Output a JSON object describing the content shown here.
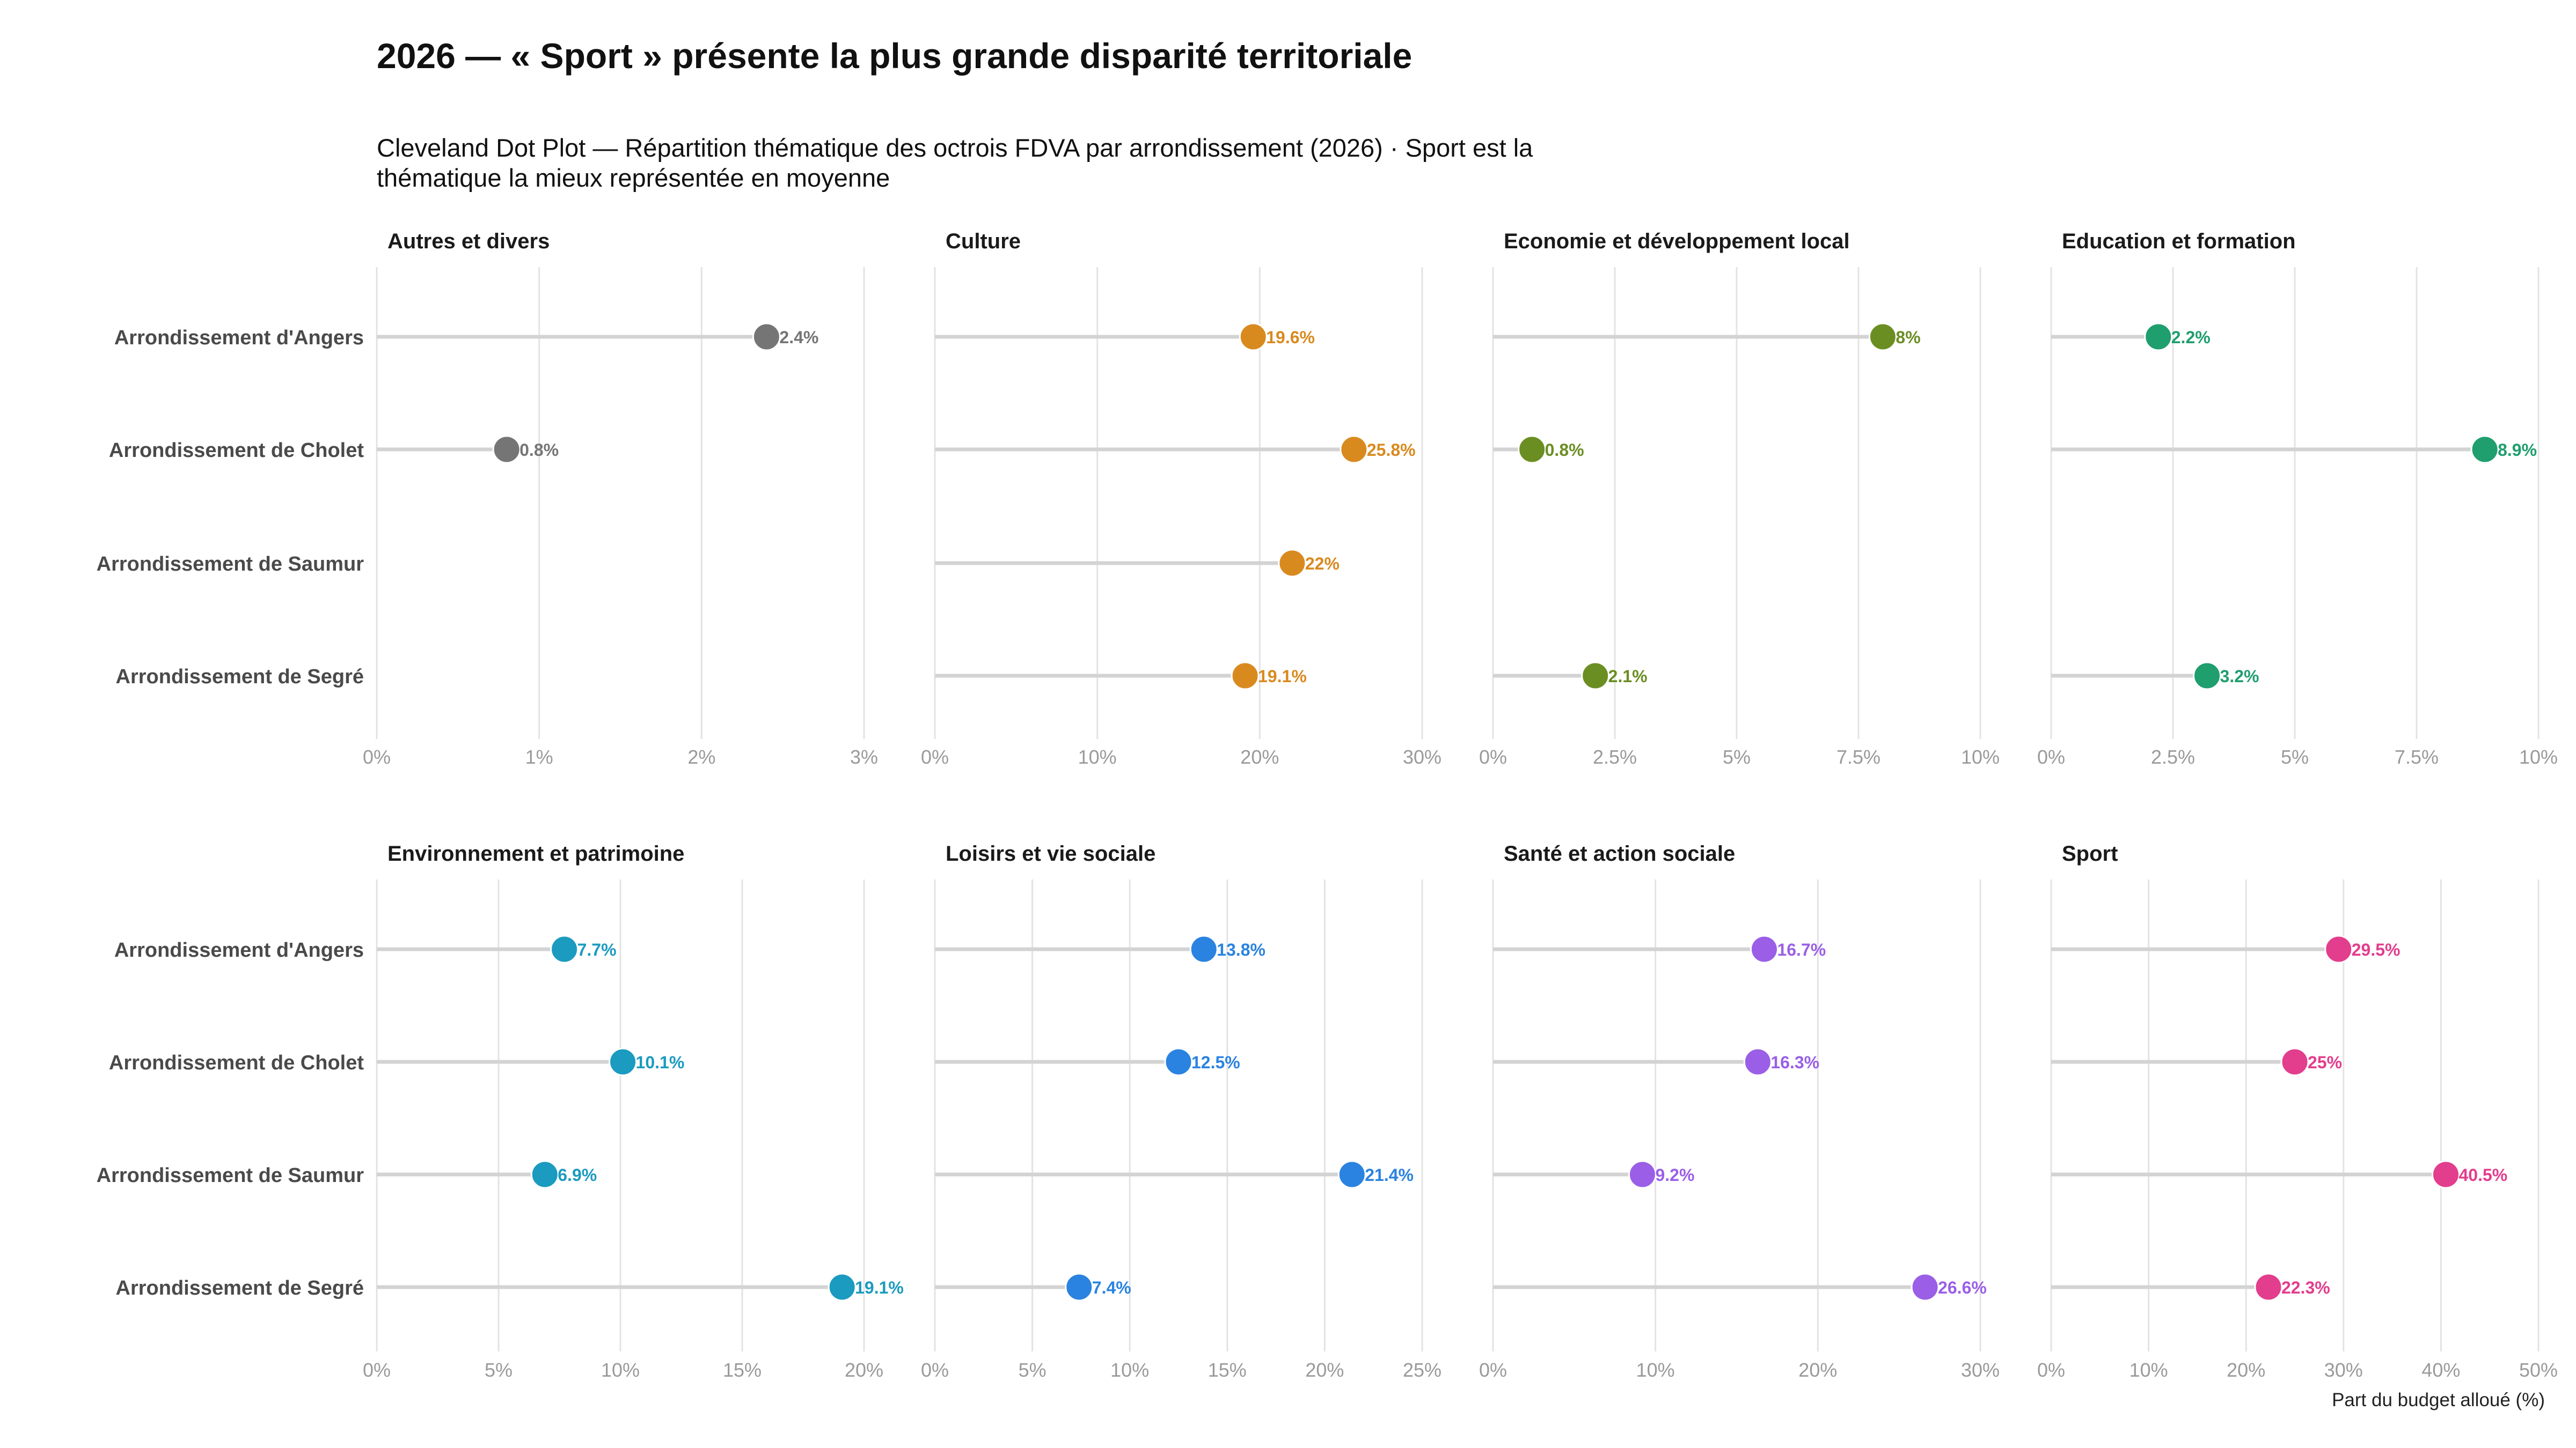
{
  "chart_data": {
    "type": "scatter",
    "subtype": "cleveland-dot-plot-faceted",
    "title": "2026 — « Sport » présente la plus grande disparité territoriale",
    "subtitle": "Cleveland Dot Plot — Répartition thématique des octrois FDVA par arrondissement (2026) · Sport est la thématique la mieux représentée en moyenne",
    "xlabel": "Part du budget alloué (%)",
    "categories": [
      "Arrondissement d'Angers",
      "Arrondissement de Cholet",
      "Arrondissement de Saumur",
      "Arrondissement de Segré"
    ],
    "panels": [
      {
        "name": "Autres et divers",
        "color": "#757575",
        "xlim": [
          0,
          3
        ],
        "ticks": [
          0,
          1,
          2,
          3
        ],
        "tick_labels": [
          "0%",
          "1%",
          "2%",
          "3%"
        ],
        "values": [
          2.4,
          0.8,
          null,
          null
        ],
        "labels": [
          "2.4%",
          "0.8%",
          null,
          null
        ]
      },
      {
        "name": "Culture",
        "color": "#d98a1f",
        "xlim": [
          0,
          30
        ],
        "ticks": [
          0,
          10,
          20,
          30
        ],
        "tick_labels": [
          "0%",
          "10%",
          "20%",
          "30%"
        ],
        "values": [
          19.6,
          25.8,
          22,
          19.1
        ],
        "labels": [
          "19.6%",
          "25.8%",
          "22%",
          "19.1%"
        ]
      },
      {
        "name": "Economie et développement local",
        "color": "#6b8e23",
        "xlim": [
          0,
          10
        ],
        "ticks": [
          0,
          2.5,
          5,
          7.5,
          10
        ],
        "tick_labels": [
          "0%",
          "2.5%",
          "5%",
          "7.5%",
          "10%"
        ],
        "values": [
          8,
          0.8,
          null,
          2.1
        ],
        "labels": [
          "8%",
          "0.8%",
          null,
          "2.1%"
        ]
      },
      {
        "name": "Education et formation",
        "color": "#1f9e6e",
        "xlim": [
          0,
          10
        ],
        "ticks": [
          0,
          2.5,
          5,
          7.5,
          10
        ],
        "tick_labels": [
          "0%",
          "2.5%",
          "5%",
          "7.5%",
          "10%"
        ],
        "values": [
          2.2,
          8.9,
          null,
          3.2
        ],
        "labels": [
          "2.2%",
          "8.9%",
          null,
          "3.2%"
        ]
      },
      {
        "name": "Environnement et patrimoine",
        "color": "#1b9bbf",
        "xlim": [
          0,
          20
        ],
        "ticks": [
          0,
          5,
          10,
          15,
          20
        ],
        "tick_labels": [
          "0%",
          "5%",
          "10%",
          "15%",
          "20%"
        ],
        "values": [
          7.7,
          10.1,
          6.9,
          19.1
        ],
        "labels": [
          "7.7%",
          "10.1%",
          "6.9%",
          "19.1%"
        ]
      },
      {
        "name": "Loisirs et vie sociale",
        "color": "#2a83e0",
        "xlim": [
          0,
          25
        ],
        "ticks": [
          0,
          5,
          10,
          15,
          20,
          25
        ],
        "tick_labels": [
          "0%",
          "5%",
          "10%",
          "15%",
          "20%",
          "25%"
        ],
        "values": [
          13.8,
          12.5,
          21.4,
          7.4
        ],
        "labels": [
          "13.8%",
          "12.5%",
          "21.4%",
          "7.4%"
        ]
      },
      {
        "name": "Santé et action sociale",
        "color": "#9a5fe6",
        "xlim": [
          0,
          30
        ],
        "ticks": [
          0,
          10,
          20,
          30
        ],
        "tick_labels": [
          "0%",
          "10%",
          "20%",
          "30%"
        ],
        "values": [
          16.7,
          16.3,
          9.2,
          26.6
        ],
        "labels": [
          "16.7%",
          "16.3%",
          "9.2%",
          "26.6%"
        ]
      },
      {
        "name": "Sport",
        "color": "#e33d8d",
        "xlim": [
          0,
          50
        ],
        "ticks": [
          0,
          10,
          20,
          30,
          40,
          50
        ],
        "tick_labels": [
          "0%",
          "10%",
          "20%",
          "30%",
          "40%",
          "50%"
        ],
        "values": [
          29.5,
          25,
          40.5,
          22.3
        ],
        "labels": [
          "29.5%",
          "25%",
          "40.5%",
          "22.3%"
        ]
      }
    ]
  }
}
